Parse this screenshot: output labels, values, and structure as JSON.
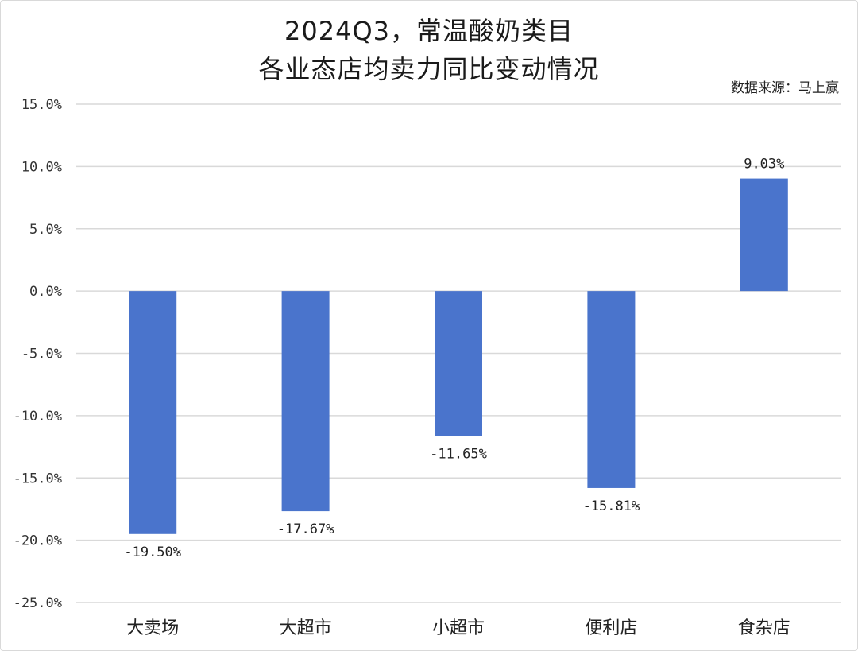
{
  "title_line1": "2024Q3，常温酸奶类目",
  "title_line2": "各业态店均卖力同比变动情况",
  "source": "数据来源：马上赢",
  "chart_data": {
    "type": "bar",
    "categories": [
      "大卖场",
      "大超市",
      "小超市",
      "便利店",
      "食杂店"
    ],
    "values": [
      -19.5,
      -17.67,
      -11.65,
      -15.81,
      9.03
    ],
    "value_labels": [
      "-19.50%",
      "-17.67%",
      "-11.65%",
      "-15.81%",
      "9.03%"
    ],
    "ylim": [
      -25,
      15
    ],
    "yticks": [
      15,
      10,
      5,
      0,
      -5,
      -10,
      -15,
      -20,
      -25
    ],
    "ytick_labels": [
      "15.0%",
      "10.0%",
      "5.0%",
      "0.0%",
      "-5.0%",
      "-10.0%",
      "-15.0%",
      "-20.0%",
      "-25.0%"
    ],
    "grid": true,
    "bar_color": "#4a74cc",
    "grid_color": "#d9d9d9"
  }
}
